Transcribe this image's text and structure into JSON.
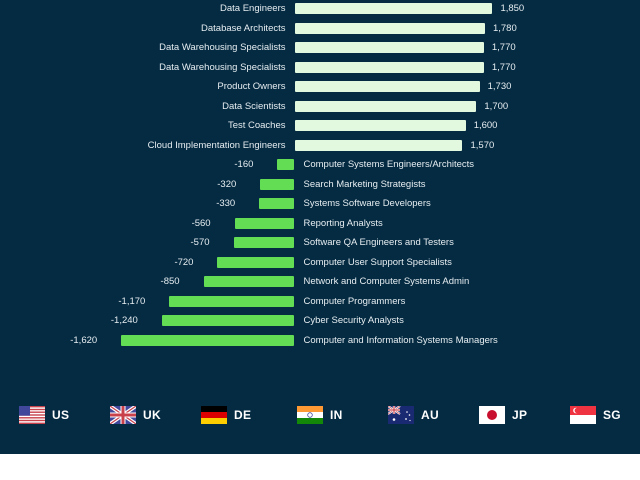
{
  "chart_data": {
    "type": "bar",
    "orientation": "horizontal",
    "title": "",
    "xlabel": "",
    "ylabel": "",
    "grid": false,
    "categories": [
      "Data Engineers",
      "Database Architects",
      "Data Warehousing Specialists",
      "Data Warehousing Specialists",
      "Product Owners",
      "Data Scientists",
      "Test Coaches",
      "Cloud Implementation Engineers",
      "Computer Systems Engineers/Architects",
      "Search Marketing Strategists",
      "Systems Software Developers",
      "Reporting Analysts",
      "Software QA Engineers and Testers",
      "Computer User Support Specialists",
      "Network and Computer Systems Admin",
      "Computer Programmers",
      "Cyber Security Analysts",
      "Computer and Information Systems Managers"
    ],
    "values": [
      1850,
      1780,
      1770,
      1770,
      1730,
      1700,
      1600,
      1570,
      -160,
      -320,
      -330,
      -560,
      -570,
      -720,
      -850,
      -1170,
      -1240,
      -1620
    ],
    "value_labels": [
      "1,850",
      "1,780",
      "1,770",
      "1,770",
      "1,730",
      "1,700",
      "1,600",
      "1,570",
      "-160",
      "-320",
      "-330",
      "-560",
      "-570",
      "-720",
      "-850",
      "-1,170",
      "-1,240",
      "-1,620"
    ],
    "colors": {
      "positive": "#e2f9df",
      "negative": "#63de54",
      "background": "#052b42"
    },
    "legend": []
  },
  "country_selector": {
    "items": [
      {
        "code": "US",
        "flag": "us-flag"
      },
      {
        "code": "UK",
        "flag": "uk-flag"
      },
      {
        "code": "DE",
        "flag": "de-flag"
      },
      {
        "code": "IN",
        "flag": "in-flag"
      },
      {
        "code": "AU",
        "flag": "au-flag"
      },
      {
        "code": "JP",
        "flag": "jp-flag"
      },
      {
        "code": "SG",
        "flag": "sg-flag"
      }
    ]
  }
}
